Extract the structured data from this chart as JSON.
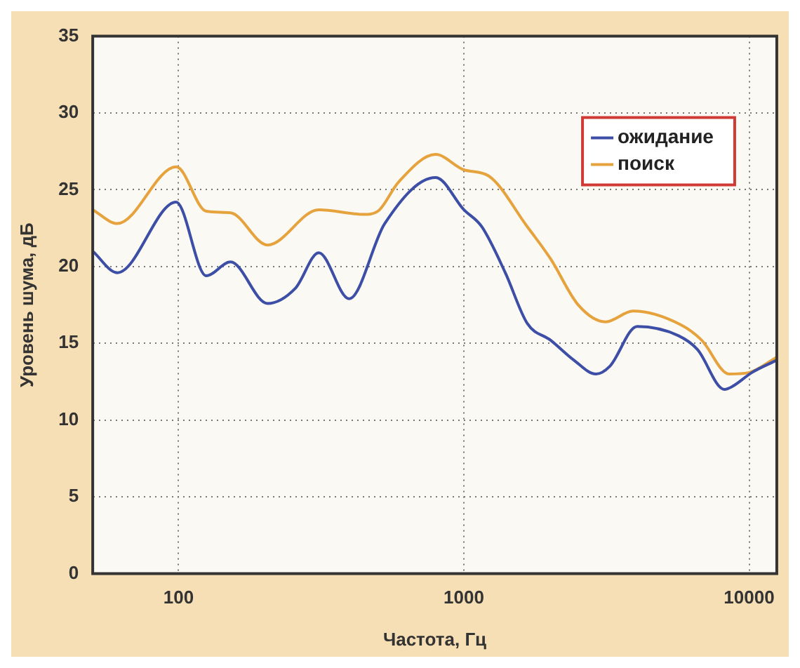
{
  "chart_data": {
    "type": "line",
    "xlabel": "Частота, Гц",
    "ylabel": "Уровень шума, дБ",
    "log": "x",
    "xlim": [
      50,
      12500
    ],
    "xticks": [
      100,
      1000,
      10000
    ],
    "ylim": [
      0,
      35
    ],
    "yticks": [
      0,
      5,
      10,
      15,
      20,
      25,
      30,
      35
    ],
    "grid": true,
    "legend": "top right",
    "marker": "none",
    "line_style": "solid",
    "series": [
      {
        "name": "ожидание",
        "color": "#3d4ea6",
        "x": [
          50,
          61,
          98,
          125,
          152,
          205,
          257,
          310,
          396,
          528,
          796,
          1000,
          1155,
          1397,
          1668,
          2014,
          2432,
          2904,
          3246,
          4050,
          5650,
          6590,
          8190,
          8750,
          10230,
          12500
        ],
        "values": [
          21.0,
          19.6,
          24.2,
          19.4,
          20.3,
          17.6,
          18.6,
          20.9,
          17.9,
          22.8,
          25.8,
          23.7,
          22.6,
          19.6,
          16.3,
          15.2,
          13.9,
          13.0,
          13.5,
          16.1,
          15.5,
          14.6,
          12.0,
          12.2,
          13.1,
          13.9
        ]
      },
      {
        "name": "поиск",
        "color": "#e6a23c",
        "x": [
          50,
          61,
          98,
          125,
          152,
          205,
          310,
          447,
          499,
          590,
          796,
          1000,
          1222,
          1668,
          2014,
          2518,
          3140,
          3920,
          5770,
          6820,
          8510,
          10000,
          12500
        ],
        "values": [
          23.7,
          22.8,
          26.5,
          23.6,
          23.5,
          21.4,
          23.7,
          23.4,
          23.6,
          25.5,
          27.3,
          26.3,
          25.9,
          22.6,
          20.5,
          17.5,
          16.4,
          17.1,
          16.2,
          15.2,
          13.0,
          13.1,
          14.1
        ]
      }
    ]
  }
}
